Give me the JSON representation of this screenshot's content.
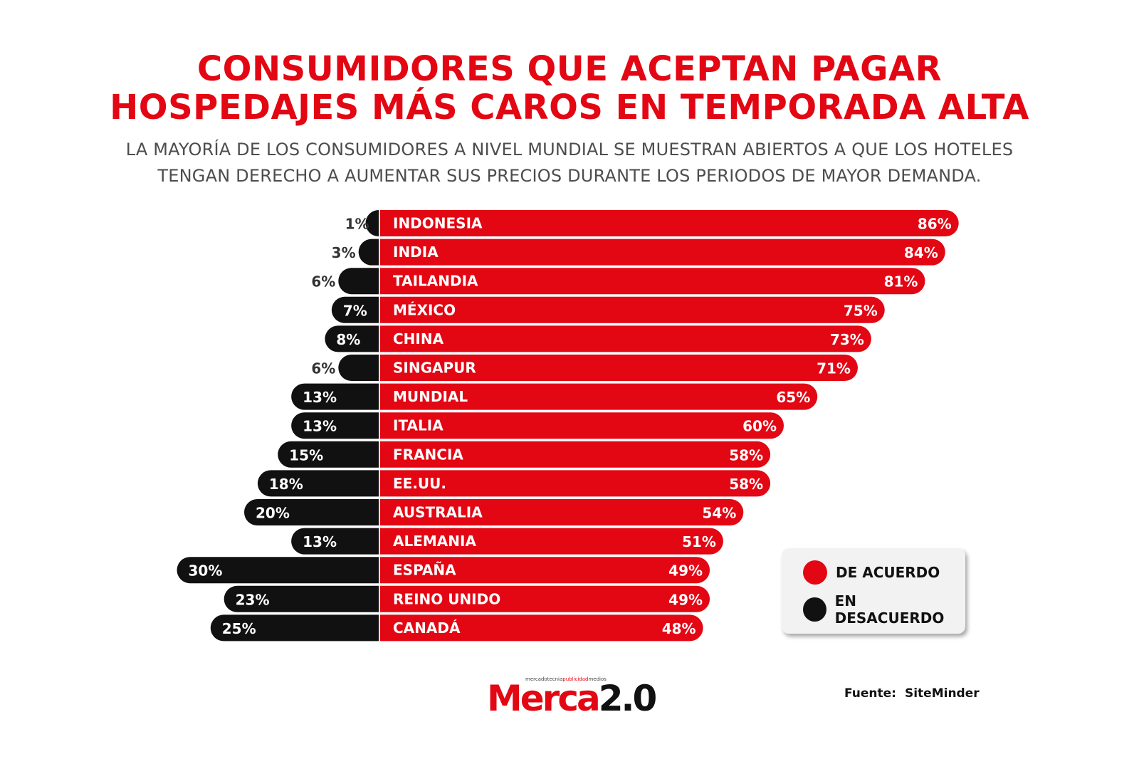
{
  "header": {
    "title_line1": "CONSUMIDORES QUE ACEPTAN PAGAR",
    "title_line2": "HOSPEDAJES MÁS CAROS EN TEMPORADA ALTA",
    "subtitle_line1": "LA MAYORÍA DE LOS CONSUMIDORES A NIVEL MUNDIAL SE MUESTRAN ABIERTOS A QUE LOS HOTELES",
    "subtitle_line2": "TENGAN DERECHO A AUMENTAR SUS PRECIOS DURANTE LOS PERIODOS DE MAYOR DEMANDA."
  },
  "chart_data": {
    "type": "bar",
    "orientation": "horizontal-diverging",
    "categories": [
      "INDONESIA",
      "INDIA",
      "TAILANDIA",
      "MÉXICO",
      "CHINA",
      "SINGAPUR",
      "MUNDIAL",
      "ITALIA",
      "FRANCIA",
      "EE.UU.",
      "AUSTRALIA",
      "ALEMANIA",
      "ESPAÑA",
      "REINO UNIDO",
      "CANADÁ"
    ],
    "series": [
      {
        "name": "DE ACUERDO",
        "color": "#e30613",
        "values": [
          86,
          84,
          81,
          75,
          73,
          71,
          65,
          60,
          58,
          58,
          54,
          51,
          49,
          49,
          48
        ]
      },
      {
        "name": "EN DESACUERDO",
        "color": "#111111",
        "values": [
          1,
          3,
          6,
          7,
          8,
          6,
          13,
          13,
          15,
          18,
          20,
          13,
          30,
          23,
          25
        ]
      }
    ],
    "value_suffix": "%",
    "legend_position": "bottom-right",
    "grid": false
  },
  "legend": {
    "agree": {
      "label": "DE ACUERDO",
      "color": "#e30613"
    },
    "disagree": {
      "label": "EN DESACUERDO",
      "color": "#111111"
    }
  },
  "footer": {
    "logo_tag_1": "mercadotecnia",
    "logo_tag_2": "publicidad",
    "logo_tag_3": "medios",
    "logo_merca": "Merca",
    "logo_version": "2.0",
    "source_label": "Fuente:",
    "source_value": "SiteMinder"
  }
}
